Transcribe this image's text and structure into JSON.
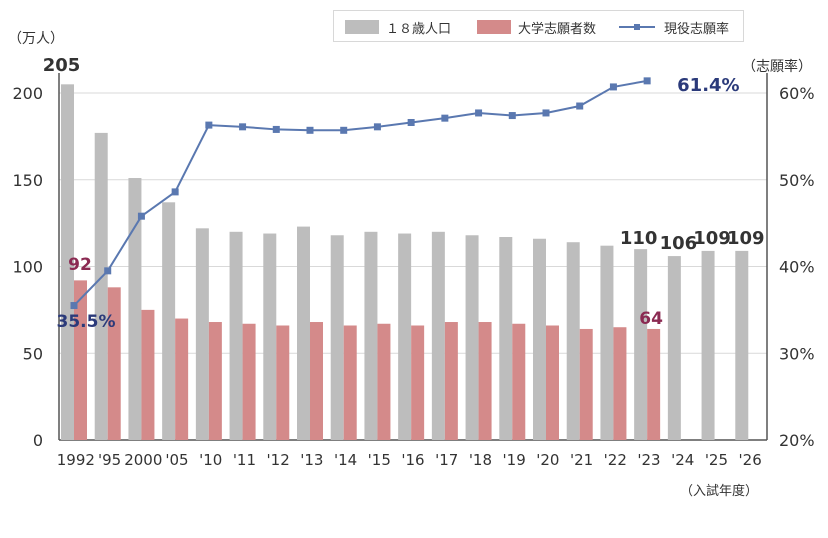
{
  "chart_data": {
    "type": "bar",
    "categories": [
      "1992",
      "'95",
      "2000",
      "'05",
      "'10",
      "'11",
      "'12",
      "'13",
      "'14",
      "'15",
      "'16",
      "'17",
      "'18",
      "'19",
      "'20",
      "'21",
      "'22",
      "'23",
      "'24",
      "'25",
      "'26"
    ],
    "series": [
      {
        "name": "１８歳人口",
        "kind": "bar",
        "axis": "left",
        "color": "#bdbdbd",
        "values": [
          205,
          177,
          151,
          137,
          122,
          120,
          119,
          123,
          118,
          120,
          119,
          120,
          118,
          117,
          116,
          114,
          112,
          110,
          106,
          109,
          109
        ]
      },
      {
        "name": "大学志願者数",
        "kind": "bar",
        "axis": "left",
        "color": "#d48a8a",
        "values": [
          92,
          88,
          75,
          70,
          68,
          67,
          66,
          68,
          66,
          67,
          66,
          68,
          68,
          67,
          66,
          64,
          65,
          64,
          null,
          null,
          null
        ]
      },
      {
        "name": "現役志願率",
        "kind": "line",
        "axis": "right",
        "color": "#5a78b0",
        "values": [
          35.5,
          39.5,
          45.8,
          48.6,
          56.3,
          56.1,
          55.8,
          55.7,
          55.7,
          56.1,
          56.6,
          57.1,
          57.7,
          57.4,
          57.7,
          58.5,
          60.7,
          61.4,
          null,
          null,
          null
        ]
      }
    ],
    "ylim": [
      0,
      210
    ],
    "y2lim": [
      20,
      63
    ],
    "yticks": [
      "0",
      "50",
      "100",
      "150",
      "200"
    ],
    "y2ticks": [
      "20%",
      "30%",
      "40%",
      "50%",
      "60%"
    ],
    "ylabel": "（万人）",
    "y2label": "（志願率）",
    "xlabel": "（入試年度）",
    "grid": "horizontal",
    "legend_position": "top-right",
    "annotations": [
      {
        "text": "205",
        "color": "#333333"
      },
      {
        "text": "92",
        "color": "#8b2a52"
      },
      {
        "text": "35.5%",
        "color": "#2b3a7a"
      },
      {
        "text": "61.4%",
        "color": "#2b3a7a"
      },
      {
        "text": "64",
        "color": "#8b2a52"
      },
      {
        "text": "110",
        "color": "#333333"
      },
      {
        "text": "106",
        "color": "#333333"
      },
      {
        "text": "109",
        "color": "#333333"
      },
      {
        "text": "109",
        "color": "#333333"
      }
    ]
  }
}
